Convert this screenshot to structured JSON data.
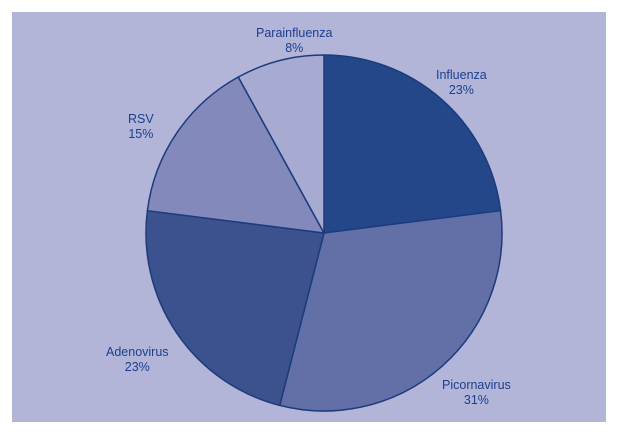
{
  "chart_data": {
    "type": "pie",
    "title": "",
    "slices": [
      {
        "label": "Influenza",
        "value": 23,
        "value_label": "23%",
        "color": "#24478a"
      },
      {
        "label": "Picornavirus",
        "value": 31,
        "value_label": "31%",
        "color": "#6370a8"
      },
      {
        "label": "Adenovirus",
        "value": 23,
        "value_label": "23%",
        "color": "#3b528f"
      },
      {
        "label": "RSV",
        "value": 15,
        "value_label": "15%",
        "color": "#8489bb"
      },
      {
        "label": "Parainfluenza",
        "value": 8,
        "value_label": "8%",
        "color": "#a7abd2"
      }
    ],
    "start_angle_deg": 0,
    "direction": "clockwise",
    "slice_edge_color": "#1c3b7d",
    "background_color": "#b2b5d8",
    "label_color": "#1b3f8e",
    "legend": "none"
  }
}
